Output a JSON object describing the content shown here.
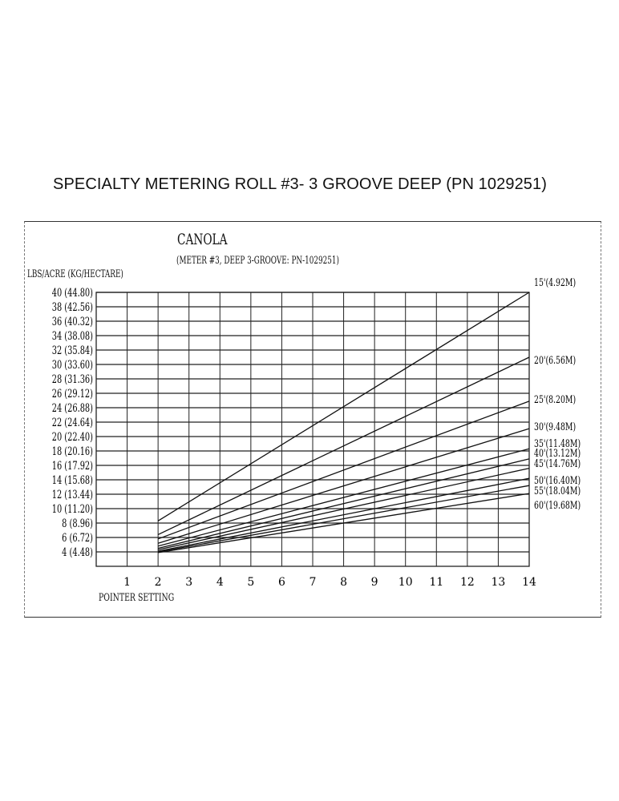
{
  "page": {
    "title": "SPECIALTY METERING ROLL  #3- 3 GROOVE DEEP (PN  1029251)"
  },
  "chart": {
    "title": "CANOLA",
    "subtitle": "(METER #3, DEEP 3-GROOVE: PN-1029251)",
    "ylabel": "LBS/ACRE (KG/HECTARE)",
    "xlabel": "POINTER SETTING"
  },
  "chart_data": {
    "type": "line",
    "title": "CANOLA",
    "subtitle": "(METER #3, DEEP 3-GROOVE: PN-1029251)",
    "xlabel": "POINTER SETTING",
    "ylabel": "LBS/ACRE (KG/HECTARE)",
    "x_ticks": [
      1,
      2,
      3,
      4,
      5,
      6,
      7,
      8,
      9,
      10,
      11,
      12,
      13,
      14
    ],
    "xlim": [
      0,
      14
    ],
    "y_ticks": [
      {
        "value": 40,
        "label": "40 (44.80)"
      },
      {
        "value": 38,
        "label": "38 (42.56)"
      },
      {
        "value": 36,
        "label": "36 (40.32)"
      },
      {
        "value": 34,
        "label": "34 (38.08)"
      },
      {
        "value": 32,
        "label": "32 (35.84)"
      },
      {
        "value": 30,
        "label": "30 (33.60)"
      },
      {
        "value": 28,
        "label": "28 (31.36)"
      },
      {
        "value": 26,
        "label": "26 (29.12)"
      },
      {
        "value": 24,
        "label": "24 (26.88)"
      },
      {
        "value": 22,
        "label": "22 (24.64)"
      },
      {
        "value": 20,
        "label": "20 (22.40)"
      },
      {
        "value": 18,
        "label": "18 (20.16)"
      },
      {
        "value": 16,
        "label": "16 (17.92)"
      },
      {
        "value": 14,
        "label": "14 (15.68)"
      },
      {
        "value": 12,
        "label": "12 (13.44)"
      },
      {
        "value": 10,
        "label": "10 (11.20)"
      },
      {
        "value": 8,
        "label": "8 (8.96)"
      },
      {
        "value": 6,
        "label": "6 (6.72)"
      },
      {
        "value": 4,
        "label": "4 (4.48)"
      }
    ],
    "ylim": [
      2,
      40
    ],
    "grid": true,
    "legend_position": "right (labels at line ends)",
    "series": [
      {
        "name": "15'(4.92M)",
        "x": [
          2,
          14
        ],
        "values": [
          8.3,
          40.0
        ]
      },
      {
        "name": "20'(6.56M)",
        "x": [
          2,
          14
        ],
        "values": [
          6.4,
          31.0
        ]
      },
      {
        "name": "25'(8.20M)",
        "x": [
          2,
          14
        ],
        "values": [
          5.8,
          24.9
        ]
      },
      {
        "name": "30'(9.48M)",
        "x": [
          2,
          14
        ],
        "values": [
          5.2,
          21.1
        ]
      },
      {
        "name": "35'(11.48M)",
        "x": [
          2,
          14
        ],
        "values": [
          4.8,
          18.3
        ]
      },
      {
        "name": "40'(13.12M)",
        "x": [
          2,
          14
        ],
        "values": [
          4.5,
          16.9
        ]
      },
      {
        "name": "45'(14.76M)",
        "x": [
          2,
          14
        ],
        "values": [
          4.3,
          15.6
        ]
      },
      {
        "name": "50'(16.40M)",
        "x": [
          2,
          14
        ],
        "values": [
          4.1,
          14.2
        ]
      },
      {
        "name": "55'(18.04M)",
        "x": [
          2,
          14
        ],
        "values": [
          4.0,
          13.2
        ]
      },
      {
        "name": "60'(19.68M)",
        "x": [
          2,
          14
        ],
        "values": [
          3.9,
          12.1
        ]
      }
    ]
  }
}
